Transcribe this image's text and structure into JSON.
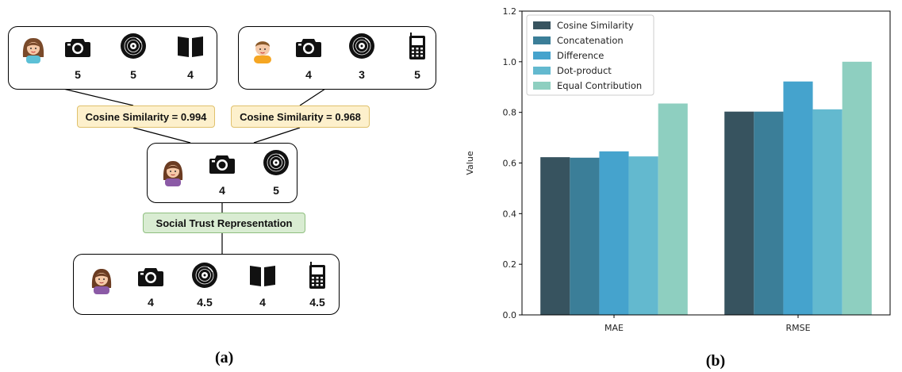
{
  "panel_a": {
    "caption": "(a)",
    "users": {
      "user1": {
        "avatar": "woman-avatar-icon",
        "items": [
          {
            "icon": "camera-icon",
            "rating": "5"
          },
          {
            "icon": "vinyl-record-icon",
            "rating": "5"
          },
          {
            "icon": "book-icon",
            "rating": "4"
          }
        ]
      },
      "user2": {
        "avatar": "man-avatar-icon",
        "items": [
          {
            "icon": "camera-icon",
            "rating": "4"
          },
          {
            "icon": "vinyl-record-icon",
            "rating": "3"
          },
          {
            "icon": "mobile-phone-icon",
            "rating": "5"
          }
        ]
      },
      "target": {
        "avatar": "target-user-avatar-icon",
        "items": [
          {
            "icon": "camera-icon",
            "rating": "4"
          },
          {
            "icon": "vinyl-record-icon",
            "rating": "5"
          }
        ]
      },
      "result": {
        "avatar": "target-user-avatar-icon",
        "items": [
          {
            "icon": "camera-icon",
            "rating": "4"
          },
          {
            "icon": "vinyl-record-icon",
            "rating": "4.5"
          },
          {
            "icon": "book-icon",
            "rating": "4"
          },
          {
            "icon": "mobile-phone-icon",
            "rating": "4.5"
          }
        ]
      }
    },
    "labels": {
      "sim_left": "Cosine Similarity = 0.994",
      "sim_right": "Cosine Similarity = 0.968",
      "social": "Social Trust Representation"
    },
    "colors": {
      "yellow_fill": "#fdf0cc",
      "green_fill": "#d9ecd2"
    }
  },
  "panel_b": {
    "caption": "(b)"
  },
  "chart_data": {
    "type": "bar",
    "categories": [
      "MAE",
      "RMSE"
    ],
    "ylabel": "Value",
    "ylim": [
      0,
      1.2
    ],
    "yticks": [
      "0.0",
      "0.2",
      "0.4",
      "0.6",
      "0.8",
      "1.0",
      "1.2"
    ],
    "legend_position": "top-left",
    "grid": false,
    "series": [
      {
        "name": "Cosine Similarity",
        "color": "#37535f",
        "values": [
          0.623,
          0.803
        ]
      },
      {
        "name": "Concatenation",
        "color": "#3b7e98",
        "values": [
          0.621,
          0.803
        ]
      },
      {
        "name": "Difference",
        "color": "#45a3cd",
        "values": [
          0.646,
          0.922
        ]
      },
      {
        "name": "Dot-product",
        "color": "#63b9cf",
        "values": [
          0.626,
          0.812
        ]
      },
      {
        "name": "Equal Contribution",
        "color": "#8ecfc0",
        "values": [
          0.835,
          1.0
        ]
      }
    ]
  }
}
